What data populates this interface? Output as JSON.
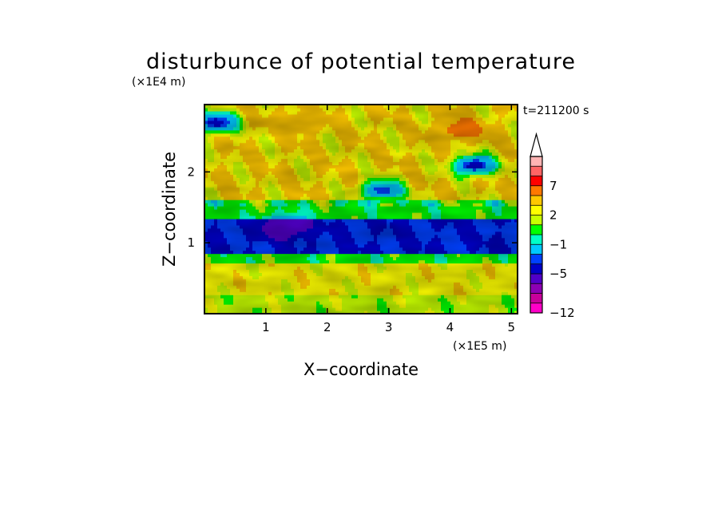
{
  "chart_data": {
    "type": "heatmap",
    "title": "disturbunce of potential temperature",
    "xlabel": "X−coordinate",
    "ylabel": "Z−coordinate",
    "x_unit": "(×1E5 m)",
    "y_unit": "(×1E4 m)",
    "time_label": "t=211200 s",
    "xlim": [
      0,
      5.1
    ],
    "ylim": [
      0,
      2.95
    ],
    "x_ticks": [
      "1",
      "2",
      "3",
      "4",
      "5"
    ],
    "x_tick_values": [
      1,
      2,
      3,
      4,
      5
    ],
    "y_ticks": [
      "1",
      "2"
    ],
    "y_tick_values": [
      1,
      2
    ],
    "colorbar": {
      "levels": [
        -12,
        -11,
        -9,
        -7,
        -5,
        -4,
        -3,
        -1,
        0,
        1,
        2,
        3,
        5,
        7,
        8,
        9
      ],
      "labels": [
        "−12",
        "−5",
        "−1",
        "2",
        "7"
      ],
      "label_values": [
        -12,
        -5,
        -1,
        2,
        7
      ],
      "colors": [
        "#ff00c8",
        "#c8009b",
        "#8c00b4",
        "#5000c8",
        "#0000c8",
        "#0040ff",
        "#00c8ff",
        "#00ffc8",
        "#00ff00",
        "#c8ff00",
        "#ffff00",
        "#ffc800",
        "#ff7800",
        "#ff0000",
        "#ff6464",
        "#ffb4b4"
      ],
      "extend": "max",
      "position": "right"
    },
    "bands": [
      {
        "z_range": [
          0.0,
          0.25
        ],
        "value": 1.5,
        "note": "yellow/green near surface"
      },
      {
        "z_range": [
          0.25,
          0.7
        ],
        "value": 2.5,
        "note": "yellow layer"
      },
      {
        "z_range": [
          0.7,
          0.85
        ],
        "value": 0.5,
        "note": "green"
      },
      {
        "z_range": [
          0.85,
          1.35
        ],
        "value": -4,
        "note": "blue inversion layer"
      },
      {
        "z_range": [
          1.35,
          1.6
        ],
        "value": 0.5,
        "note": "green/yellow"
      },
      {
        "z_range": [
          1.6,
          2.95
        ],
        "value": 3,
        "note": "orange/yellow upper region with waves"
      }
    ],
    "features": [
      {
        "x": 0.2,
        "z": 2.7,
        "value": -5,
        "note": "dark blue patch upper-left"
      },
      {
        "x": 4.2,
        "z": 2.6,
        "value": 7,
        "note": "red maximum upper-right"
      },
      {
        "x": 4.4,
        "z": 2.1,
        "value": -5,
        "note": "blue patch"
      },
      {
        "x": 2.9,
        "z": 1.75,
        "value": -4,
        "note": "blue patch"
      },
      {
        "x": 1.5,
        "z": 2.7,
        "value": 5,
        "note": "orange patch"
      },
      {
        "x": 1.3,
        "z": 1.22,
        "value": -7,
        "note": "dark blue core"
      }
    ]
  }
}
